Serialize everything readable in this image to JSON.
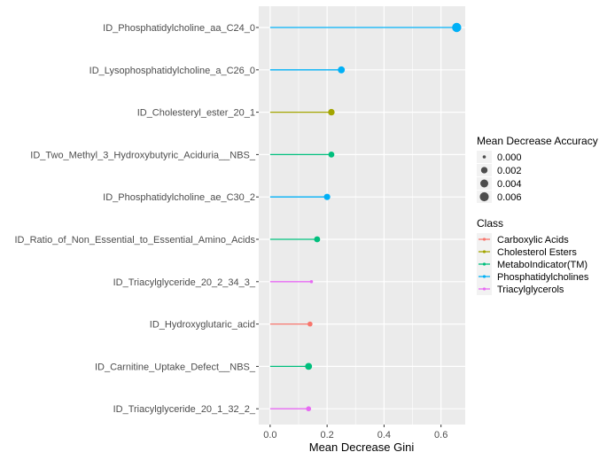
{
  "chart_data": {
    "type": "lollipop",
    "title": "",
    "xlabel": "Mean Decrease Gini",
    "ylabel": "",
    "xlim": [
      -0.04,
      0.685
    ],
    "x_ticks": [
      0.0,
      0.2,
      0.4,
      0.6
    ],
    "x_tick_labels": [
      "0.0",
      "0.2",
      "0.4",
      "0.6"
    ],
    "grid": true,
    "categories": [
      "ID_Phosphatidylcholine_aa_C24_0",
      "ID_Lysophosphatidylcholine_a_C26_0",
      "ID_Cholesteryl_ester_20_1",
      "ID_Two_Methyl_3_Hydroxybutyric_Aciduria__NBS_",
      "ID_Phosphatidylcholine_ae_C30_2",
      "ID_Ratio_of_Non_Essential_to_Essential_Amino_Acids",
      "ID_Triacylglyceride_20_2_34_3_",
      "ID_Hydroxyglutaric_acid",
      "ID_Carnitine_Uptake_Defect__NBS_",
      "ID_Triacylglyceride_20_1_32_2_"
    ],
    "gini": [
      0.655,
      0.25,
      0.215,
      0.215,
      0.2,
      0.165,
      0.145,
      0.14,
      0.135,
      0.135
    ],
    "accuracy": [
      0.0065,
      0.0025,
      0.002,
      0.0014,
      0.0018,
      0.0015,
      0.0,
      0.0006,
      0.0025,
      0.0006
    ],
    "class": [
      "Phosphatidylcholines",
      "Phosphatidylcholines",
      "Cholesterol Esters",
      "MetaboIndicator(TM)",
      "Phosphatidylcholines",
      "MetaboIndicator(TM)",
      "Triacylglycerols",
      "Carboxylic Acids",
      "MetaboIndicator(TM)",
      "Triacylglycerols"
    ],
    "size_legend": {
      "title": "Mean Decrease Accuracy",
      "labels": [
        "0.000",
        "0.002",
        "0.004",
        "0.006"
      ],
      "values": [
        0.0,
        0.002,
        0.004,
        0.006
      ]
    },
    "color_legend": {
      "title": "Class",
      "labels": [
        "Carboxylic Acids",
        "Cholesterol Esters",
        "MetaboIndicator(TM)",
        "Phosphatidylcholines",
        "Triacylglycerols"
      ],
      "colors": [
        "#F8766D",
        "#A3A500",
        "#00BF7D",
        "#00B0F6",
        "#E76BF3"
      ]
    }
  }
}
